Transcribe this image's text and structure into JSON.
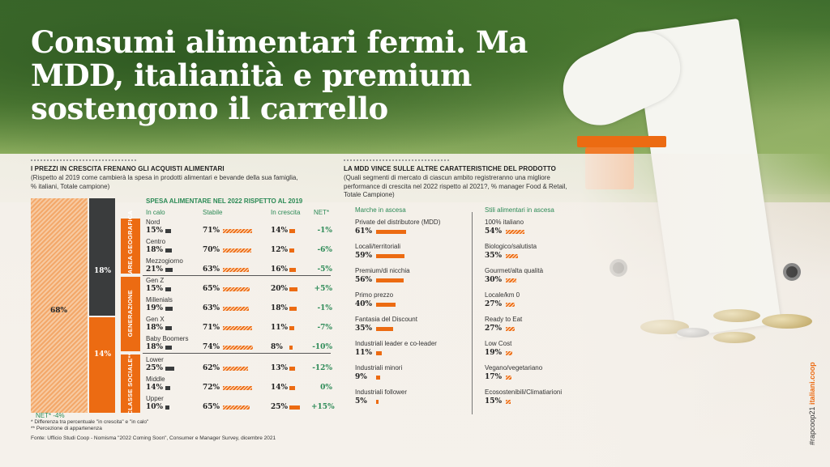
{
  "headline": "Consumi alimentari fermi. Ma MDD, italianità e premium sostengono il carrello",
  "left": {
    "title": "I PREZZI IN CRESCITA FRENANO GLI ACQUISTI ALIMENTARI",
    "subtitle": "(Rispetto al 2019 come cambierà la spesa in prodotti alimentari e bevande della sua famiglia, % italiani, Totale campione)",
    "stack_labels": [
      "68%",
      "18%",
      "14%"
    ],
    "net_total": "NET* -4%",
    "table_title": "SPESA ALIMENTARE NEL 2022 RISPETTO AL 2019",
    "col_headers": [
      "In calo",
      "Stabile",
      "In crescita",
      "NET*"
    ],
    "groups": [
      "AREA GEOGRAFICA",
      "GENERAZIONE",
      "CLASSE SOCIALE**"
    ],
    "footnotes": [
      "* Differenza tra percentuale \"in crescita\" e \"in calo\"",
      "** Percezione di appartenenza"
    ],
    "source": "Fonte: Ufficio Studi Coop - Nomisma \"2022 Coming Soon\", Consumer e Manager Survey, dicembre 2021"
  },
  "right": {
    "title": "LA MDD VINCE SULLE ALTRE CARATTERISTICHE DEL PRODOTTO",
    "subtitle": "(Quali segmenti di mercato di ciascun ambito registreranno una migliore performance di crescita nel 2022 rispetto al 2021?, % manager Food & Retail, Totale Campione)",
    "col_headers": [
      "Marche in ascesa",
      "Stili alimentari in ascesa"
    ]
  },
  "side_tag": {
    "hashtag": "#rapcoop21",
    "site": "italiani.coop"
  },
  "colors": {
    "orange": "#ec6b12",
    "dark": "#3a3c3d",
    "green": "#2c8a56"
  },
  "chart_data": [
    {
      "type": "bar",
      "title": "I PREZZI IN CRESCITA FRENANO GLI ACQUISTI ALIMENTARI",
      "stacked": true,
      "categories": [
        "Totale campione"
      ],
      "series": [
        {
          "name": "Stabile",
          "values": [
            68
          ]
        },
        {
          "name": "In calo",
          "values": [
            18
          ]
        },
        {
          "name": "In crescita",
          "values": [
            14
          ]
        }
      ],
      "net": -4
    },
    {
      "type": "table",
      "title": "SPESA ALIMENTARE NEL 2022 RISPETTO AL 2019",
      "columns": [
        "In calo",
        "Stabile",
        "In crescita",
        "NET*"
      ],
      "rows": [
        {
          "group": "AREA GEOGRAFICA",
          "name": "Nord",
          "calo": 15,
          "stabile": 71,
          "crescita": 14,
          "net": "-1%"
        },
        {
          "group": "AREA GEOGRAFICA",
          "name": "Centro",
          "calo": 18,
          "stabile": 70,
          "crescita": 12,
          "net": "-6%"
        },
        {
          "group": "AREA GEOGRAFICA",
          "name": "Mezzogiorno",
          "calo": 21,
          "stabile": 63,
          "crescita": 16,
          "net": "-5%"
        },
        {
          "group": "GENERAZIONE",
          "name": "Gen Z",
          "calo": 15,
          "stabile": 65,
          "crescita": 20,
          "net": "+5%"
        },
        {
          "group": "GENERAZIONE",
          "name": "Millenials",
          "calo": 19,
          "stabile": 63,
          "crescita": 18,
          "net": "-1%"
        },
        {
          "group": "GENERAZIONE",
          "name": "Gen X",
          "calo": 18,
          "stabile": 71,
          "crescita": 11,
          "net": "-7%"
        },
        {
          "group": "GENERAZIONE",
          "name": "Baby Boomers",
          "calo": 18,
          "stabile": 74,
          "crescita": 8,
          "net": "-10%"
        },
        {
          "group": "CLASSE SOCIALE**",
          "name": "Lower",
          "calo": 25,
          "stabile": 62,
          "crescita": 13,
          "net": "-12%"
        },
        {
          "group": "CLASSE SOCIALE**",
          "name": "Middle",
          "calo": 14,
          "stabile": 72,
          "crescita": 14,
          "net": "0%"
        },
        {
          "group": "CLASSE SOCIALE**",
          "name": "Upper",
          "calo": 10,
          "stabile": 65,
          "crescita": 25,
          "net": "+15%"
        }
      ]
    },
    {
      "type": "bar",
      "title": "Marche in ascesa",
      "categories": [
        "Private del distributore (MDD)",
        "Locali/territoriali",
        "Premium/di nicchia",
        "Primo prezzo",
        "Fantasia del Discount",
        "Industriali leader e co-leader",
        "Industriali minori",
        "Industriali follower"
      ],
      "values": [
        61,
        59,
        56,
        40,
        35,
        11,
        9,
        5
      ]
    },
    {
      "type": "bar",
      "title": "Stili alimentari in ascesa",
      "categories": [
        "100% italiano",
        "Biologico/salutista",
        "Gourmet/alta qualità",
        "Locale/km 0",
        "Ready to Eat",
        "Low Cost",
        "Vegano/vegetariano",
        "Ecosostenibili/Climatiarioni"
      ],
      "values": [
        54,
        35,
        30,
        27,
        27,
        19,
        17,
        15
      ]
    }
  ]
}
